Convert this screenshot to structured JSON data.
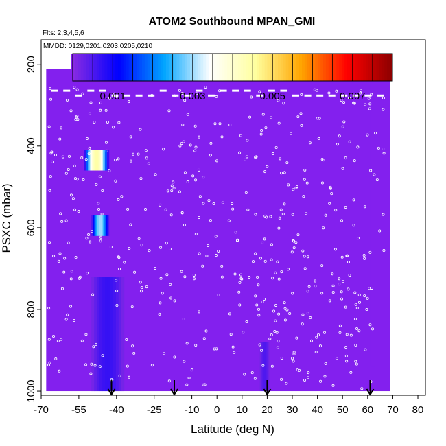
{
  "chart_data": {
    "type": "heatmap",
    "title": "ATOM2 Southbound MPAN_GMI",
    "subtitle_flights": "Flts: 2,3,4,5,6",
    "subtitle_dates": "MMDD: 0129,0201,0203,0205,0210",
    "xlabel": "Latitude (deg N)",
    "ylabel": "PSXC (mbar)",
    "xlim": [
      -70,
      83
    ],
    "ylim": [
      1010,
      140
    ],
    "x_ticks": [
      -70,
      -55,
      -40,
      -25,
      -10,
      0,
      10,
      20,
      30,
      40,
      50,
      60,
      70,
      80
    ],
    "x_tick_labels": [
      "-70",
      "-55",
      "-40",
      "-25",
      "-10",
      "0",
      "10",
      "20",
      "30",
      "40",
      "50",
      "60",
      "70",
      "80"
    ],
    "y_ticks": [
      200,
      400,
      600,
      800,
      1000
    ],
    "y_tick_labels": [
      "200",
      "400",
      "600",
      "800",
      "1000"
    ],
    "colorbar": {
      "min": 0.0,
      "max": 0.008,
      "ticks": [
        0.001,
        0.003,
        0.005,
        0.007
      ],
      "tick_labels": [
        "0.001",
        "0.003",
        "0.005",
        "0.007"
      ],
      "colors": [
        "#8a2be2",
        "#0000ff",
        "#00a5ff",
        "#ffffff",
        "#ffff9f",
        "#ffa500",
        "#ff0000",
        "#8b0000"
      ]
    },
    "background_value": 0.0001,
    "background_color": "#8320ee",
    "coverage_columns": [
      {
        "lat0": -68,
        "lat1": -58,
        "p_top": 212,
        "p_bot": 1000
      },
      {
        "lat0": -58,
        "lat1": 69,
        "p_top": 175,
        "p_bot": 1000
      },
      {
        "lat0": 61,
        "lat1": 63,
        "p_top": 175,
        "p_bot": 940
      },
      {
        "lat0": 63,
        "lat1": 69,
        "p_top": 175,
        "p_bot": 680
      }
    ],
    "anomalies": [
      {
        "lat0": -53,
        "lat1": -43,
        "p0": 410,
        "p1": 460,
        "value": 0.0045,
        "note": "high MPAN layer"
      },
      {
        "lat0": -50,
        "lat1": -43,
        "p0": 570,
        "p1": 620,
        "value": 0.003,
        "note": "elevated MPAN layer"
      },
      {
        "lat0": -50,
        "lat1": -37,
        "p0": 720,
        "p1": 1000,
        "value": 0.0007,
        "note": "boundary-layer enhancement"
      },
      {
        "lat0": 17,
        "lat1": 21,
        "p0": 880,
        "p1": 1000,
        "value": 0.0005,
        "note": "weak enhancement"
      }
    ],
    "arrows_lat": [
      -42,
      -17,
      20,
      61
    ]
  }
}
